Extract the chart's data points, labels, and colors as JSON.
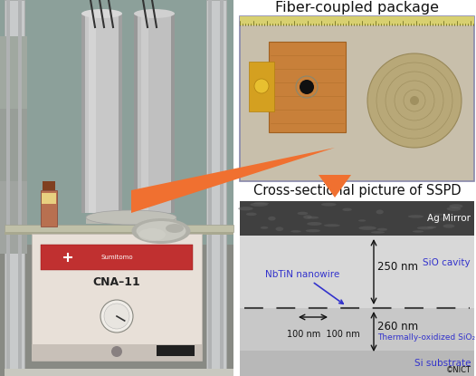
{
  "fig_width": 5.26,
  "fig_height": 4.15,
  "dpi": 100,
  "bg_color": "#ffffff",
  "title_fiber": "Fiber-coupled package",
  "title_cross": "Cross-sectional picture of SSPD",
  "label_ag_mirror": "Ag Mirror",
  "label_sio_cavity": "SiO cavity",
  "label_nbtln": "NbTiN nanowire",
  "label_250nm": "250 nm",
  "label_260nm": "260 nm",
  "label_100nm_100nm": "100 nm  100 nm",
  "label_therm": "Thermally-oxidized SiO₂",
  "label_si": "Si substrate",
  "label_copyright": "©NICT",
  "label_cna": "CNA–11",
  "arrow_color": "#F07030",
  "blue_text": "#3333cc",
  "white_text": "#ffffff",
  "black_text": "#111111",
  "gray_border": "#8888aa",
  "panel_bg": "#e8e8e8"
}
